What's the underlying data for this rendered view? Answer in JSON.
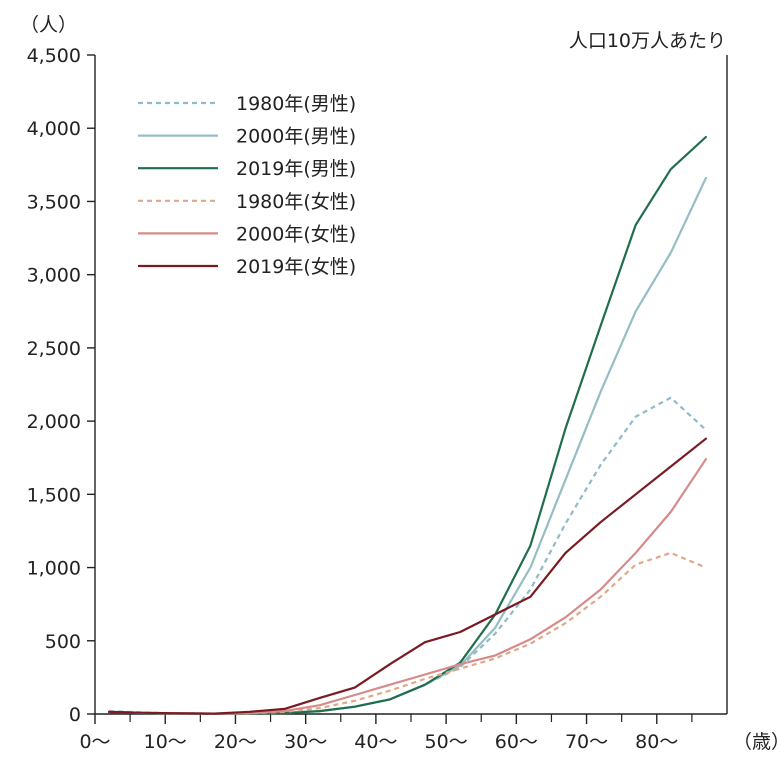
{
  "chart_data": {
    "type": "line",
    "y_unit_label": "（人）",
    "x_unit_label": "（歳）",
    "note": "人口10万人あたり",
    "ylim": [
      0,
      4500
    ],
    "y_ticks": [
      "0",
      "500",
      "1,000",
      "1,500",
      "2,000",
      "2,500",
      "3,000",
      "3,500",
      "4,000",
      "4,500"
    ],
    "y_tick_values": [
      0,
      500,
      1000,
      1500,
      2000,
      2500,
      3000,
      3500,
      4000,
      4500
    ],
    "xlim": [
      0,
      90
    ],
    "x_ticks": [
      "0〜",
      "10〜",
      "20〜",
      "30〜",
      "40〜",
      "50〜",
      "60〜",
      "70〜",
      "80〜"
    ],
    "x_tick_values": [
      0,
      10,
      20,
      30,
      40,
      50,
      60,
      70,
      80
    ],
    "x_minor_ticks": [
      5,
      15,
      25,
      35,
      45,
      55,
      65,
      75,
      85
    ],
    "series": [
      {
        "name": "1980年(男性)",
        "color": "#8fbcc9",
        "dash": "dashed",
        "points": [
          [
            2,
            20
          ],
          [
            7,
            10
          ],
          [
            12,
            5
          ],
          [
            17,
            3
          ],
          [
            22,
            5
          ],
          [
            27,
            10
          ],
          [
            32,
            20
          ],
          [
            37,
            50
          ],
          [
            42,
            100
          ],
          [
            47,
            200
          ],
          [
            52,
            320
          ],
          [
            57,
            550
          ],
          [
            62,
            850
          ],
          [
            67,
            1300
          ],
          [
            72,
            1700
          ],
          [
            77,
            2030
          ],
          [
            82,
            2160
          ],
          [
            87,
            1940
          ]
        ]
      },
      {
        "name": "2000年(男性)",
        "color": "#95bec4",
        "dash": "solid",
        "points": [
          [
            2,
            15
          ],
          [
            7,
            8
          ],
          [
            12,
            5
          ],
          [
            17,
            3
          ],
          [
            22,
            3
          ],
          [
            27,
            8
          ],
          [
            32,
            20
          ],
          [
            37,
            50
          ],
          [
            42,
            100
          ],
          [
            47,
            200
          ],
          [
            52,
            330
          ],
          [
            57,
            590
          ],
          [
            62,
            1000
          ],
          [
            67,
            1600
          ],
          [
            72,
            2200
          ],
          [
            77,
            2750
          ],
          [
            82,
            3150
          ],
          [
            87,
            3660
          ]
        ]
      },
      {
        "name": "2019年(男性)",
        "color": "#1f6e4c",
        "dash": "solid",
        "points": [
          [
            2,
            12
          ],
          [
            7,
            6
          ],
          [
            12,
            4
          ],
          [
            17,
            2
          ],
          [
            22,
            2
          ],
          [
            27,
            6
          ],
          [
            32,
            20
          ],
          [
            37,
            50
          ],
          [
            42,
            100
          ],
          [
            47,
            200
          ],
          [
            52,
            350
          ],
          [
            57,
            680
          ],
          [
            62,
            1150
          ],
          [
            67,
            1950
          ],
          [
            72,
            2650
          ],
          [
            77,
            3340
          ],
          [
            82,
            3720
          ],
          [
            87,
            3940
          ]
        ]
      },
      {
        "name": "1980年(女性)",
        "color": "#e0a888",
        "dash": "dashed",
        "points": [
          [
            2,
            15
          ],
          [
            7,
            8
          ],
          [
            12,
            5
          ],
          [
            17,
            3
          ],
          [
            22,
            5
          ],
          [
            27,
            15
          ],
          [
            32,
            40
          ],
          [
            37,
            90
          ],
          [
            42,
            160
          ],
          [
            47,
            240
          ],
          [
            52,
            310
          ],
          [
            57,
            380
          ],
          [
            62,
            480
          ],
          [
            67,
            620
          ],
          [
            72,
            800
          ],
          [
            77,
            1020
          ],
          [
            82,
            1100
          ],
          [
            87,
            1000
          ]
        ]
      },
      {
        "name": "2000年(女性)",
        "color": "#d88a8a",
        "dash": "solid",
        "points": [
          [
            2,
            15
          ],
          [
            7,
            8
          ],
          [
            12,
            5
          ],
          [
            17,
            3
          ],
          [
            22,
            5
          ],
          [
            27,
            20
          ],
          [
            32,
            60
          ],
          [
            37,
            130
          ],
          [
            42,
            200
          ],
          [
            47,
            270
          ],
          [
            52,
            340
          ],
          [
            57,
            400
          ],
          [
            62,
            510
          ],
          [
            67,
            660
          ],
          [
            72,
            850
          ],
          [
            77,
            1100
          ],
          [
            82,
            1380
          ],
          [
            87,
            1740
          ]
        ]
      },
      {
        "name": "2019年(女性)",
        "color": "#7a1a22",
        "dash": "solid",
        "points": [
          [
            2,
            15
          ],
          [
            7,
            8
          ],
          [
            12,
            5
          ],
          [
            17,
            3
          ],
          [
            22,
            15
          ],
          [
            27,
            35
          ],
          [
            32,
            110
          ],
          [
            37,
            180
          ],
          [
            42,
            340
          ],
          [
            47,
            490
          ],
          [
            52,
            560
          ],
          [
            57,
            680
          ],
          [
            62,
            800
          ],
          [
            67,
            1100
          ],
          [
            72,
            1310
          ],
          [
            77,
            1500
          ],
          [
            82,
            1690
          ],
          [
            87,
            1880
          ]
        ]
      }
    ]
  }
}
